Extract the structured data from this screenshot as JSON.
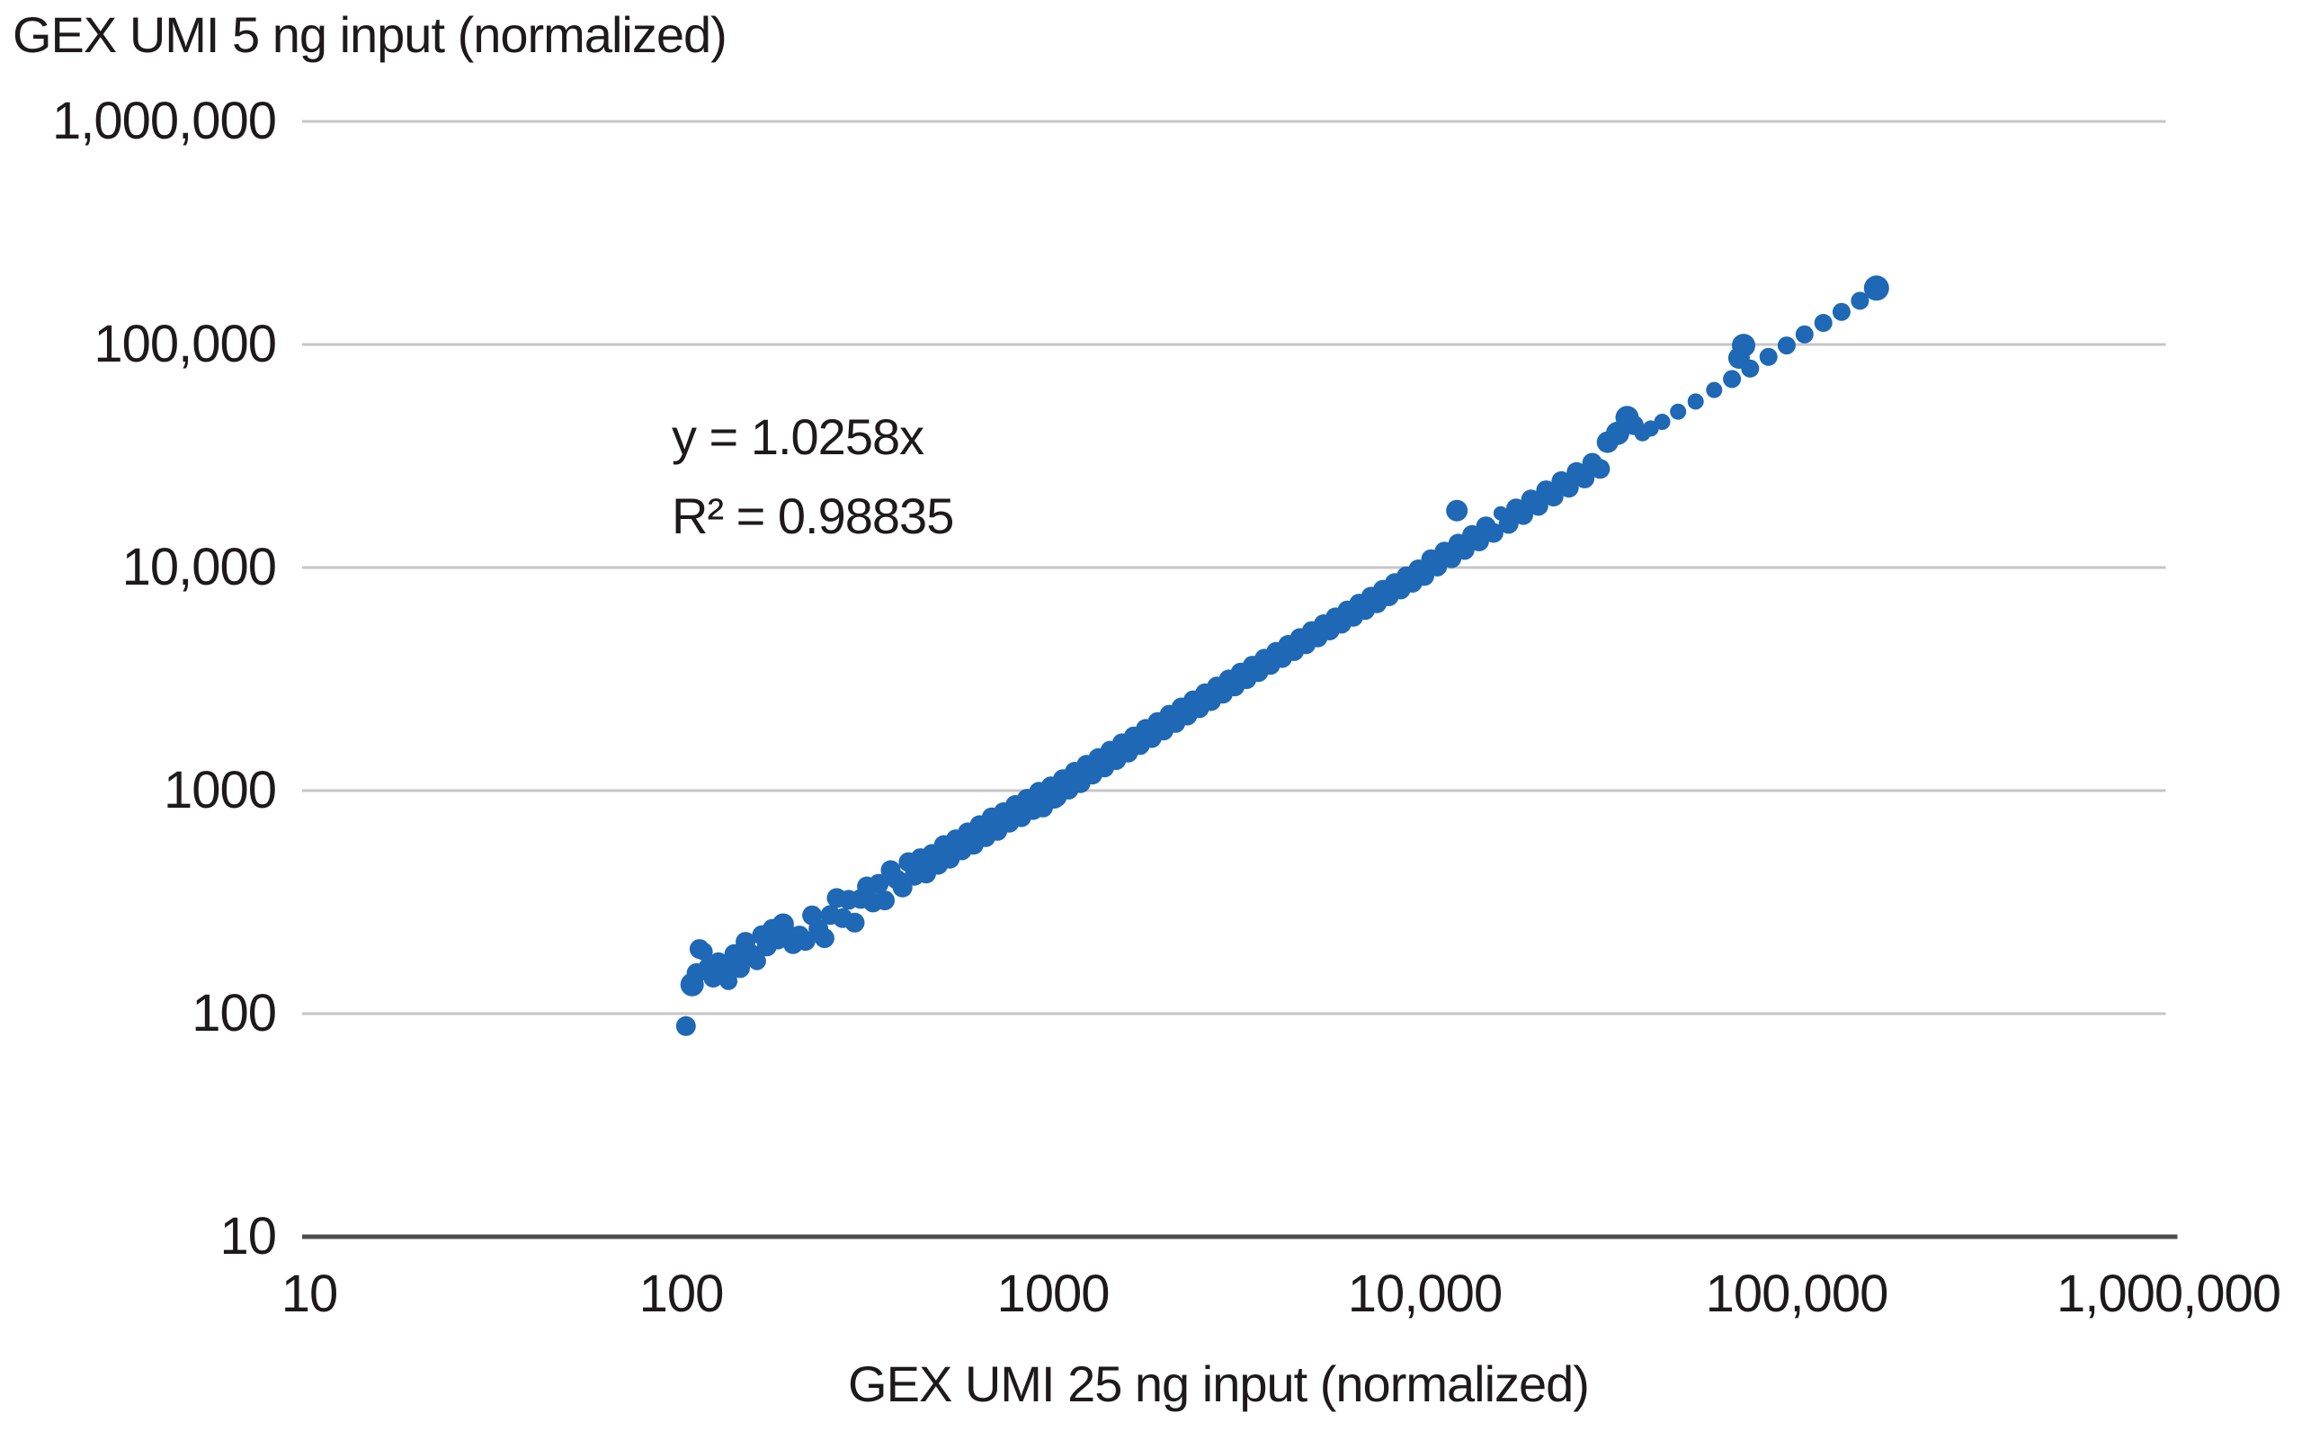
{
  "chart_data": {
    "type": "scatter",
    "xlabel": "GEX UMI 25 ng input (normalized)",
    "ylabel": "GEX UMI 5 ng input (normalized)",
    "annotation": {
      "equation": "y = 1.0258x",
      "r_squared": "R² = 0.98835"
    },
    "x_scale": "log",
    "y_scale": "log",
    "xlim": [
      10,
      1000000
    ],
    "ylim": [
      10,
      1000000
    ],
    "grid": "horizontal-only",
    "x_ticks": [
      10,
      100,
      1000,
      10000,
      100000,
      1000000
    ],
    "x_tick_labels": [
      "10",
      "100",
      "1000",
      "10,000",
      "100,000",
      "1,000,000"
    ],
    "y_ticks": [
      1000000,
      100000,
      10000,
      1000,
      100,
      10
    ],
    "y_tick_labels": [
      "1,000,000",
      "100,000",
      "10,000",
      "1000",
      "100",
      "10"
    ],
    "colors": {
      "marker": "#1e68b5",
      "gridline": "#c6c6c6",
      "axis_line": "#4d4d4d",
      "text": "#1e1a1b"
    },
    "marker_default_radius": 11,
    "points": [
      [
        103,
        88
      ],
      [
        107,
        135,
        13
      ],
      [
        110,
        152
      ],
      [
        112,
        195
      ],
      [
        115,
        190,
        10
      ],
      [
        118,
        160
      ],
      [
        122,
        145
      ],
      [
        126,
        170
      ],
      [
        130,
        165,
        12
      ],
      [
        134,
        140,
        10
      ],
      [
        139,
        185
      ],
      [
        144,
        160
      ],
      [
        149,
        210
      ],
      [
        154,
        185
      ],
      [
        160,
        172,
        10
      ],
      [
        165,
        225
      ],
      [
        170,
        200
      ],
      [
        176,
        240
      ],
      [
        182,
        215
      ],
      [
        188,
        252,
        12
      ],
      [
        194,
        228,
        10
      ],
      [
        200,
        205
      ],
      [
        208,
        224
      ],
      [
        216,
        212
      ],
      [
        225,
        276
      ],
      [
        234,
        240
      ],
      [
        243,
        218
      ],
      [
        252,
        277
      ],
      [
        262,
        330
      ],
      [
        272,
        268
      ],
      [
        282,
        324
      ],
      [
        293,
        256
      ],
      [
        304,
        327
      ],
      [
        316,
        372
      ],
      [
        328,
        315
      ],
      [
        340,
        382
      ],
      [
        353,
        322
      ],
      [
        366,
        440
      ],
      [
        380,
        400
      ],
      [
        394,
        368
      ],
      [
        409,
        478
      ],
      [
        424,
        415
      ],
      [
        440,
        498
      ],
      [
        456,
        425
      ],
      [
        473,
        520
      ],
      [
        491,
        465
      ],
      [
        500,
        515
      ],
      [
        509,
        570
      ],
      [
        528,
        495
      ],
      [
        548,
        605
      ],
      [
        569,
        540
      ],
      [
        590,
        650
      ],
      [
        612,
        572
      ],
      [
        635,
        700
      ],
      [
        640,
        650
      ],
      [
        659,
        618
      ],
      [
        684,
        758
      ],
      [
        709,
        660
      ],
      [
        736,
        800
      ],
      [
        763,
        718
      ],
      [
        792,
        862
      ],
      [
        800,
        815
      ],
      [
        822,
        760
      ],
      [
        852,
        920
      ],
      [
        884,
        818
      ],
      [
        917,
        988
      ],
      [
        940,
        840
      ],
      [
        952,
        880
      ],
      [
        987,
        1045
      ],
      [
        1000,
        1030
      ],
      [
        1010,
        920
      ],
      [
        1024,
        935
      ],
      [
        1063,
        1125
      ],
      [
        1102,
        1010
      ],
      [
        1144,
        1215
      ],
      [
        1186,
        1080
      ],
      [
        1231,
        1305
      ],
      [
        1250,
        1285
      ],
      [
        1277,
        1180
      ],
      [
        1325,
        1400
      ],
      [
        1374,
        1270
      ],
      [
        1426,
        1510
      ],
      [
        1479,
        1370
      ],
      [
        1534,
        1630
      ],
      [
        1592,
        1480
      ],
      [
        1600,
        1650
      ],
      [
        1651,
        1750
      ],
      [
        1713,
        1600
      ],
      [
        1777,
        1890
      ],
      [
        1843,
        1720
      ],
      [
        1912,
        2030
      ],
      [
        1984,
        1860
      ],
      [
        2000,
        2060
      ],
      [
        2058,
        2190
      ],
      [
        2135,
        2010
      ],
      [
        2215,
        2360
      ],
      [
        2298,
        2170
      ],
      [
        2384,
        2540
      ],
      [
        2473,
        2340
      ],
      [
        2500,
        2580
      ],
      [
        2565,
        2730
      ],
      [
        2661,
        2520
      ],
      [
        2761,
        2930
      ],
      [
        2864,
        2720
      ],
      [
        2971,
        3150
      ],
      [
        3082,
        2930
      ],
      [
        3150,
        3240
      ],
      [
        3197,
        3380
      ],
      [
        3317,
        3160
      ],
      [
        3441,
        3630
      ],
      [
        3570,
        3400
      ],
      [
        3703,
        3900
      ],
      [
        3842,
        3660
      ],
      [
        3985,
        4190
      ],
      [
        4134,
        3930
      ],
      [
        4289,
        4500
      ],
      [
        4449,
        4220
      ],
      [
        4615,
        4830
      ],
      [
        4788,
        4530
      ],
      [
        4967,
        5190
      ],
      [
        5152,
        4860
      ],
      [
        5345,
        5570
      ],
      [
        5545,
        5220
      ],
      [
        5752,
        5980
      ],
      [
        5967,
        5600
      ],
      [
        6190,
        6420
      ],
      [
        6421,
        6010
      ],
      [
        6661,
        6890
      ],
      [
        6910,
        6450
      ],
      [
        7168,
        7400
      ],
      [
        7436,
        6920
      ],
      [
        7714,
        7940
      ],
      [
        8002,
        7430
      ],
      [
        8301,
        8520
      ],
      [
        8611,
        7970
      ],
      [
        8933,
        9150
      ],
      [
        9267,
        8550
      ],
      [
        9613,
        9820
      ],
      [
        9972,
        9170
      ],
      [
        10400,
        10900
      ],
      [
        10800,
        10100
      ],
      [
        11300,
        11800
      ],
      [
        11800,
        11000
      ],
      [
        12200,
        18000,
        12
      ],
      [
        12300,
        12800
      ],
      [
        12800,
        12000
      ],
      [
        13400,
        14000
      ],
      [
        14000,
        13100
      ],
      [
        14600,
        15300
      ],
      [
        15300,
        14300
      ],
      [
        16000,
        17500,
        8
      ],
      [
        16800,
        15700
      ],
      [
        17600,
        18400
      ],
      [
        18400,
        17200
      ],
      [
        19300,
        20200
      ],
      [
        20200,
        18900
      ],
      [
        21200,
        22200
      ],
      [
        22200,
        20800
      ],
      [
        23300,
        24400
      ],
      [
        24400,
        22800
      ],
      [
        25600,
        26800
      ],
      [
        26900,
        25100
      ],
      [
        28200,
        29500
      ],
      [
        29600,
        27700
      ],
      [
        31000,
        36500,
        12
      ],
      [
        33000,
        40000,
        13
      ],
      [
        35000,
        47000,
        13
      ],
      [
        36500,
        43500,
        11
      ],
      [
        38500,
        40000,
        9
      ],
      [
        40500,
        42000,
        9
      ],
      [
        43500,
        45000,
        9
      ],
      [
        48000,
        50000,
        9
      ],
      [
        53500,
        55500,
        9
      ],
      [
        60000,
        62500,
        9
      ],
      [
        67000,
        70000,
        10
      ],
      [
        70000,
        87000,
        12
      ],
      [
        72000,
        99000,
        13
      ],
      [
        75000,
        78000,
        10
      ],
      [
        84000,
        88000,
        10
      ],
      [
        94000,
        99000,
        10
      ],
      [
        105000,
        111000,
        10
      ],
      [
        118000,
        125000,
        10
      ],
      [
        132000,
        140000,
        10
      ],
      [
        148000,
        157000,
        10
      ],
      [
        164000,
        179000,
        14
      ]
    ]
  }
}
